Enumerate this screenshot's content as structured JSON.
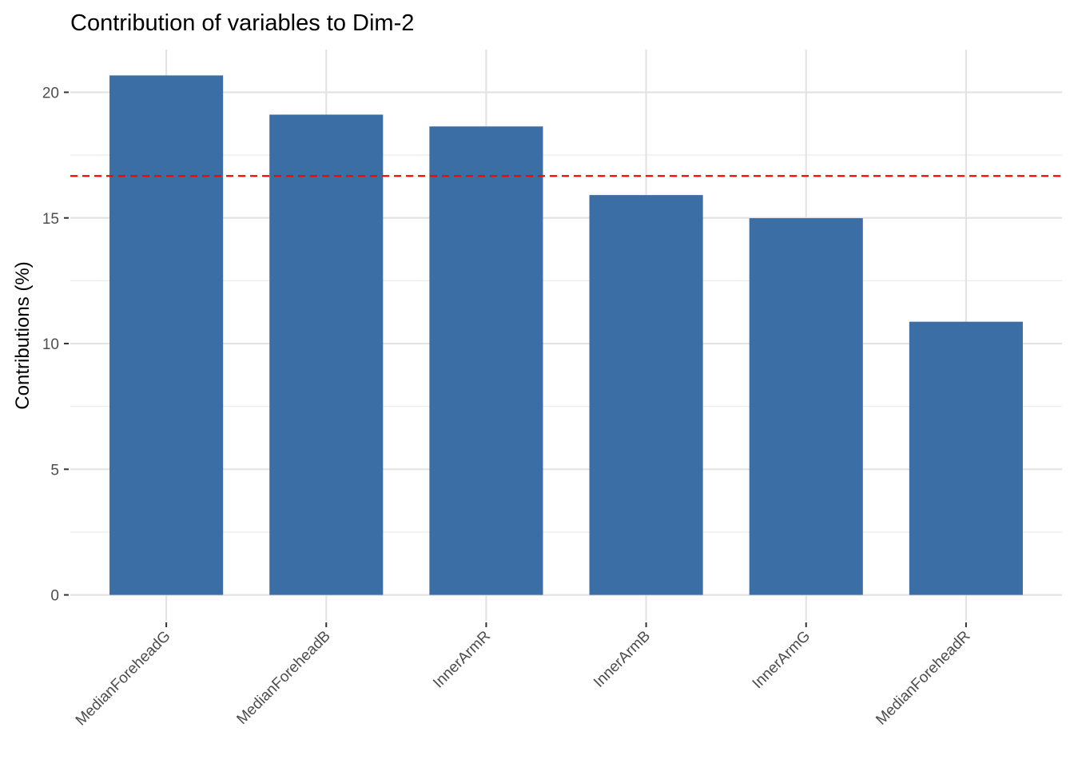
{
  "chart_data": {
    "type": "bar",
    "title": "Contribution of variables to Dim-2",
    "xlabel": "",
    "ylabel": "Contributions (%)",
    "categories": [
      "MedianForeheadG",
      "MedianForeheadB",
      "InnerArmR",
      "InnerArmB",
      "InnerArmG",
      "MedianForeheadR"
    ],
    "values": [
      20.67,
      19.11,
      18.64,
      15.91,
      14.99,
      10.87
    ],
    "yticks": [
      0,
      5,
      10,
      15,
      20
    ],
    "ylim": [
      -1.03,
      21.7
    ],
    "reference_line": {
      "value": 16.67,
      "style": "dashed",
      "color": "#ff0000"
    },
    "bar_color": "#3a6ea5",
    "grid": true
  }
}
